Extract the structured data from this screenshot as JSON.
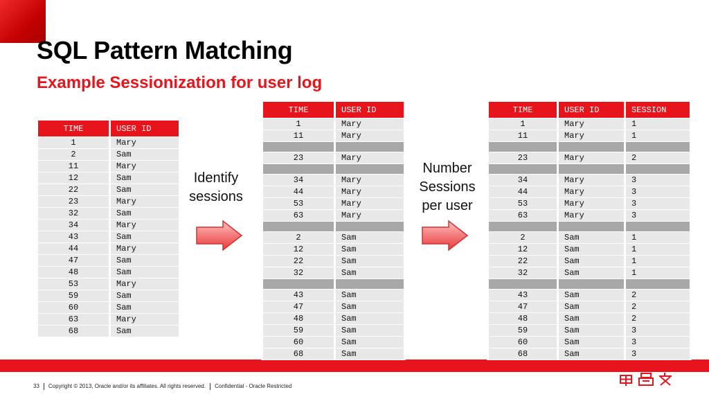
{
  "title": "SQL Pattern Matching",
  "subtitle": "Example Sessionization for user log",
  "labels": {
    "identify": "Identify sessions",
    "number": "Number Sessions per user"
  },
  "colors": {
    "accent": "#e8141b",
    "cell": "#e8e8e8",
    "separator": "#a8a8a8"
  },
  "table_input": {
    "headers": [
      "TIME",
      "USER ID"
    ],
    "rows": [
      [
        "1",
        "Mary"
      ],
      [
        "2",
        "Sam"
      ],
      [
        "11",
        "Mary"
      ],
      [
        "12",
        "Sam"
      ],
      [
        "22",
        "Sam"
      ],
      [
        "23",
        "Mary"
      ],
      [
        "32",
        "Sam"
      ],
      [
        "34",
        "Mary"
      ],
      [
        "43",
        "Sam"
      ],
      [
        "44",
        "Mary"
      ],
      [
        "47",
        "Sam"
      ],
      [
        "48",
        "Sam"
      ],
      [
        "53",
        "Mary"
      ],
      [
        "59",
        "Sam"
      ],
      [
        "60",
        "Sam"
      ],
      [
        "63",
        "Mary"
      ],
      [
        "68",
        "Sam"
      ]
    ]
  },
  "table_sessions": {
    "headers": [
      "TIME",
      "USER ID"
    ],
    "rows": [
      [
        "1",
        "Mary"
      ],
      [
        "11",
        "Mary"
      ],
      null,
      [
        "23",
        "Mary"
      ],
      null,
      [
        "34",
        "Mary"
      ],
      [
        "44",
        "Mary"
      ],
      [
        "53",
        "Mary"
      ],
      [
        "63",
        "Mary"
      ],
      null,
      [
        "2",
        "Sam"
      ],
      [
        "12",
        "Sam"
      ],
      [
        "22",
        "Sam"
      ],
      [
        "32",
        "Sam"
      ],
      null,
      [
        "43",
        "Sam"
      ],
      [
        "47",
        "Sam"
      ],
      [
        "48",
        "Sam"
      ],
      [
        "59",
        "Sam"
      ],
      [
        "60",
        "Sam"
      ],
      [
        "68",
        "Sam"
      ]
    ]
  },
  "table_numbered": {
    "headers": [
      "TIME",
      "USER ID",
      "SESSION"
    ],
    "rows": [
      [
        "1",
        "Mary",
        "1"
      ],
      [
        "11",
        "Mary",
        "1"
      ],
      null,
      [
        "23",
        "Mary",
        "2"
      ],
      null,
      [
        "34",
        "Mary",
        "3"
      ],
      [
        "44",
        "Mary",
        "3"
      ],
      [
        "53",
        "Mary",
        "3"
      ],
      [
        "63",
        "Mary",
        "3"
      ],
      null,
      [
        "2",
        "Sam",
        "1"
      ],
      [
        "12",
        "Sam",
        "1"
      ],
      [
        "22",
        "Sam",
        "1"
      ],
      [
        "32",
        "Sam",
        "1"
      ],
      null,
      [
        "43",
        "Sam",
        "2"
      ],
      [
        "47",
        "Sam",
        "2"
      ],
      [
        "48",
        "Sam",
        "2"
      ],
      [
        "59",
        "Sam",
        "3"
      ],
      [
        "60",
        "Sam",
        "3"
      ],
      [
        "68",
        "Sam",
        "3"
      ]
    ]
  },
  "footer": {
    "page": "33",
    "copyright": "Copyright © 2013, Oracle and/or its affiliates. All rights reserved.",
    "confidential": "Confidential - Oracle Restricted"
  },
  "logo": {
    "icon": "oracle-logo-icon",
    "text": "甲骨文"
  }
}
